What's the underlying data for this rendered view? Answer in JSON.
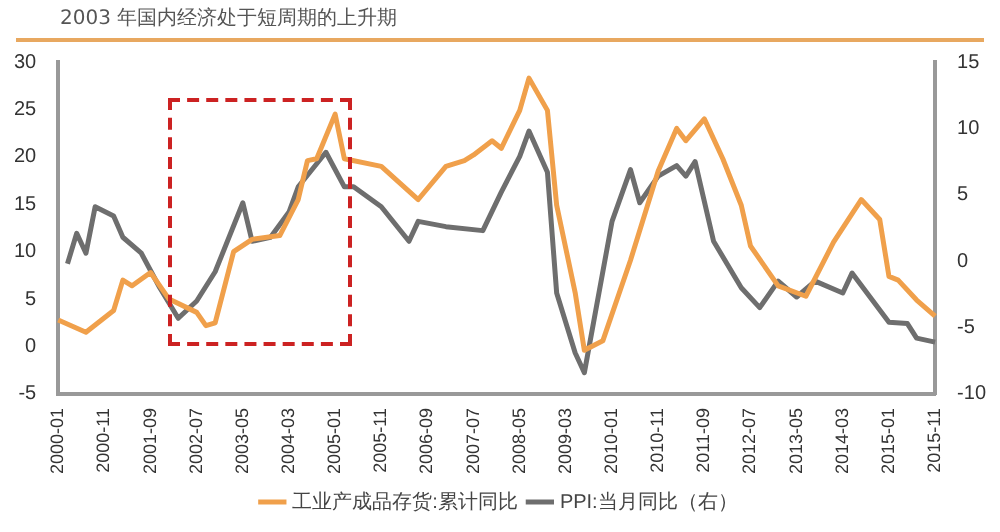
{
  "chart_data": {
    "type": "line",
    "title": "2003 年国内经济处于短周期的上升期",
    "categories": [
      "2000-01",
      null,
      null,
      null,
      null,
      "2000-11",
      null,
      null,
      null,
      null,
      "2001-09",
      null,
      null,
      null,
      null,
      "2002-07",
      null,
      null,
      null,
      null,
      "2003-05",
      null,
      null,
      null,
      null,
      "2004-03",
      null,
      null,
      null,
      null,
      "2005-01",
      null,
      null,
      null,
      null,
      "2005-11",
      null,
      null,
      null,
      null,
      "2006-09",
      null,
      null,
      null,
      null,
      "2007-07",
      null,
      null,
      null,
      null,
      "2008-05",
      null,
      null,
      null,
      null,
      "2009-03",
      null,
      null,
      null,
      null,
      "2010-01",
      null,
      null,
      null,
      null,
      "2010-11",
      null,
      null,
      null,
      null,
      "2011-09",
      null,
      null,
      null,
      null,
      "2012-07",
      null,
      null,
      null,
      null,
      "2013-05",
      null,
      null,
      null,
      null,
      "2014-03",
      null,
      null,
      null,
      null,
      "2015-01",
      null,
      null,
      null,
      null,
      "2015-11"
    ],
    "series": [
      {
        "name": "工业产成品存货:累计同比",
        "color": "#f0a04b",
        "values": [
          2.8,
          null,
          null,
          1.5,
          null,
          null,
          3.8,
          7,
          6.4,
          null,
          7.8,
          null,
          5,
          null,
          null,
          3.6,
          2.2,
          2.5,
          null,
          10,
          null,
          11.3,
          null,
          null,
          11.7,
          null,
          15.5,
          19.6,
          19.8,
          null,
          24.5,
          19.8,
          null,
          null,
          null,
          19,
          null,
          null,
          null,
          15.5,
          null,
          null,
          19,
          null,
          19.6,
          20.2,
          null,
          21.7,
          20.9,
          null,
          24.9,
          28.3,
          null,
          24.9,
          14.9,
          null,
          5.7,
          -0.4,
          null,
          0.6,
          null,
          null,
          9.1,
          null,
          null,
          18.5,
          null,
          23,
          21.7,
          null,
          24,
          null,
          19.8,
          null,
          14.9,
          10.6,
          null,
          null,
          6.4,
          null,
          null,
          5.3,
          null,
          null,
          11,
          null,
          null,
          15.5,
          null,
          13.4,
          7.4,
          7,
          null,
          4.9,
          null,
          3.2
        ]
      },
      {
        "name": "PPI:当月同比（右）",
        "color": "#6e6e6e",
        "axis": "y2",
        "values": [
          null,
          -0.2,
          2.1,
          0.6,
          4.1,
          null,
          3.4,
          1.8,
          null,
          0.6,
          null,
          -2,
          null,
          -4.3,
          null,
          -3,
          null,
          -0.8,
          null,
          null,
          4.4,
          1.5,
          null,
          1.8,
          null,
          3.7,
          5.6,
          null,
          null,
          8.2,
          null,
          5.6,
          5.6,
          null,
          null,
          4.1,
          null,
          null,
          1.5,
          3,
          null,
          null,
          2.6,
          null,
          null,
          null,
          2.3,
          null,
          5.2,
          null,
          7.9,
          9.8,
          null,
          6.7,
          -2.4,
          null,
          -6.9,
          -8.4,
          -4.6,
          null,
          3,
          null,
          6.9,
          4.4,
          null,
          6.4,
          null,
          7.2,
          6.4,
          7.5,
          null,
          1.5,
          null,
          null,
          -2,
          null,
          -3.5,
          null,
          -1.5,
          null,
          -2.7,
          null,
          -1.5,
          null,
          null,
          -2.4,
          -0.9,
          null,
          null,
          null,
          -4.6,
          null,
          -4.7,
          -5.8,
          null,
          -6.1
        ]
      }
    ],
    "ylim": [
      -5,
      30
    ],
    "yticks": [
      -5,
      0,
      5,
      10,
      15,
      20,
      25,
      30
    ],
    "y2lim": [
      -10,
      15
    ],
    "y2ticks": [
      -10,
      -5,
      0,
      5,
      10,
      15
    ],
    "grid": false,
    "legend": "bottom",
    "marker": "none",
    "line_style": "solid"
  }
}
